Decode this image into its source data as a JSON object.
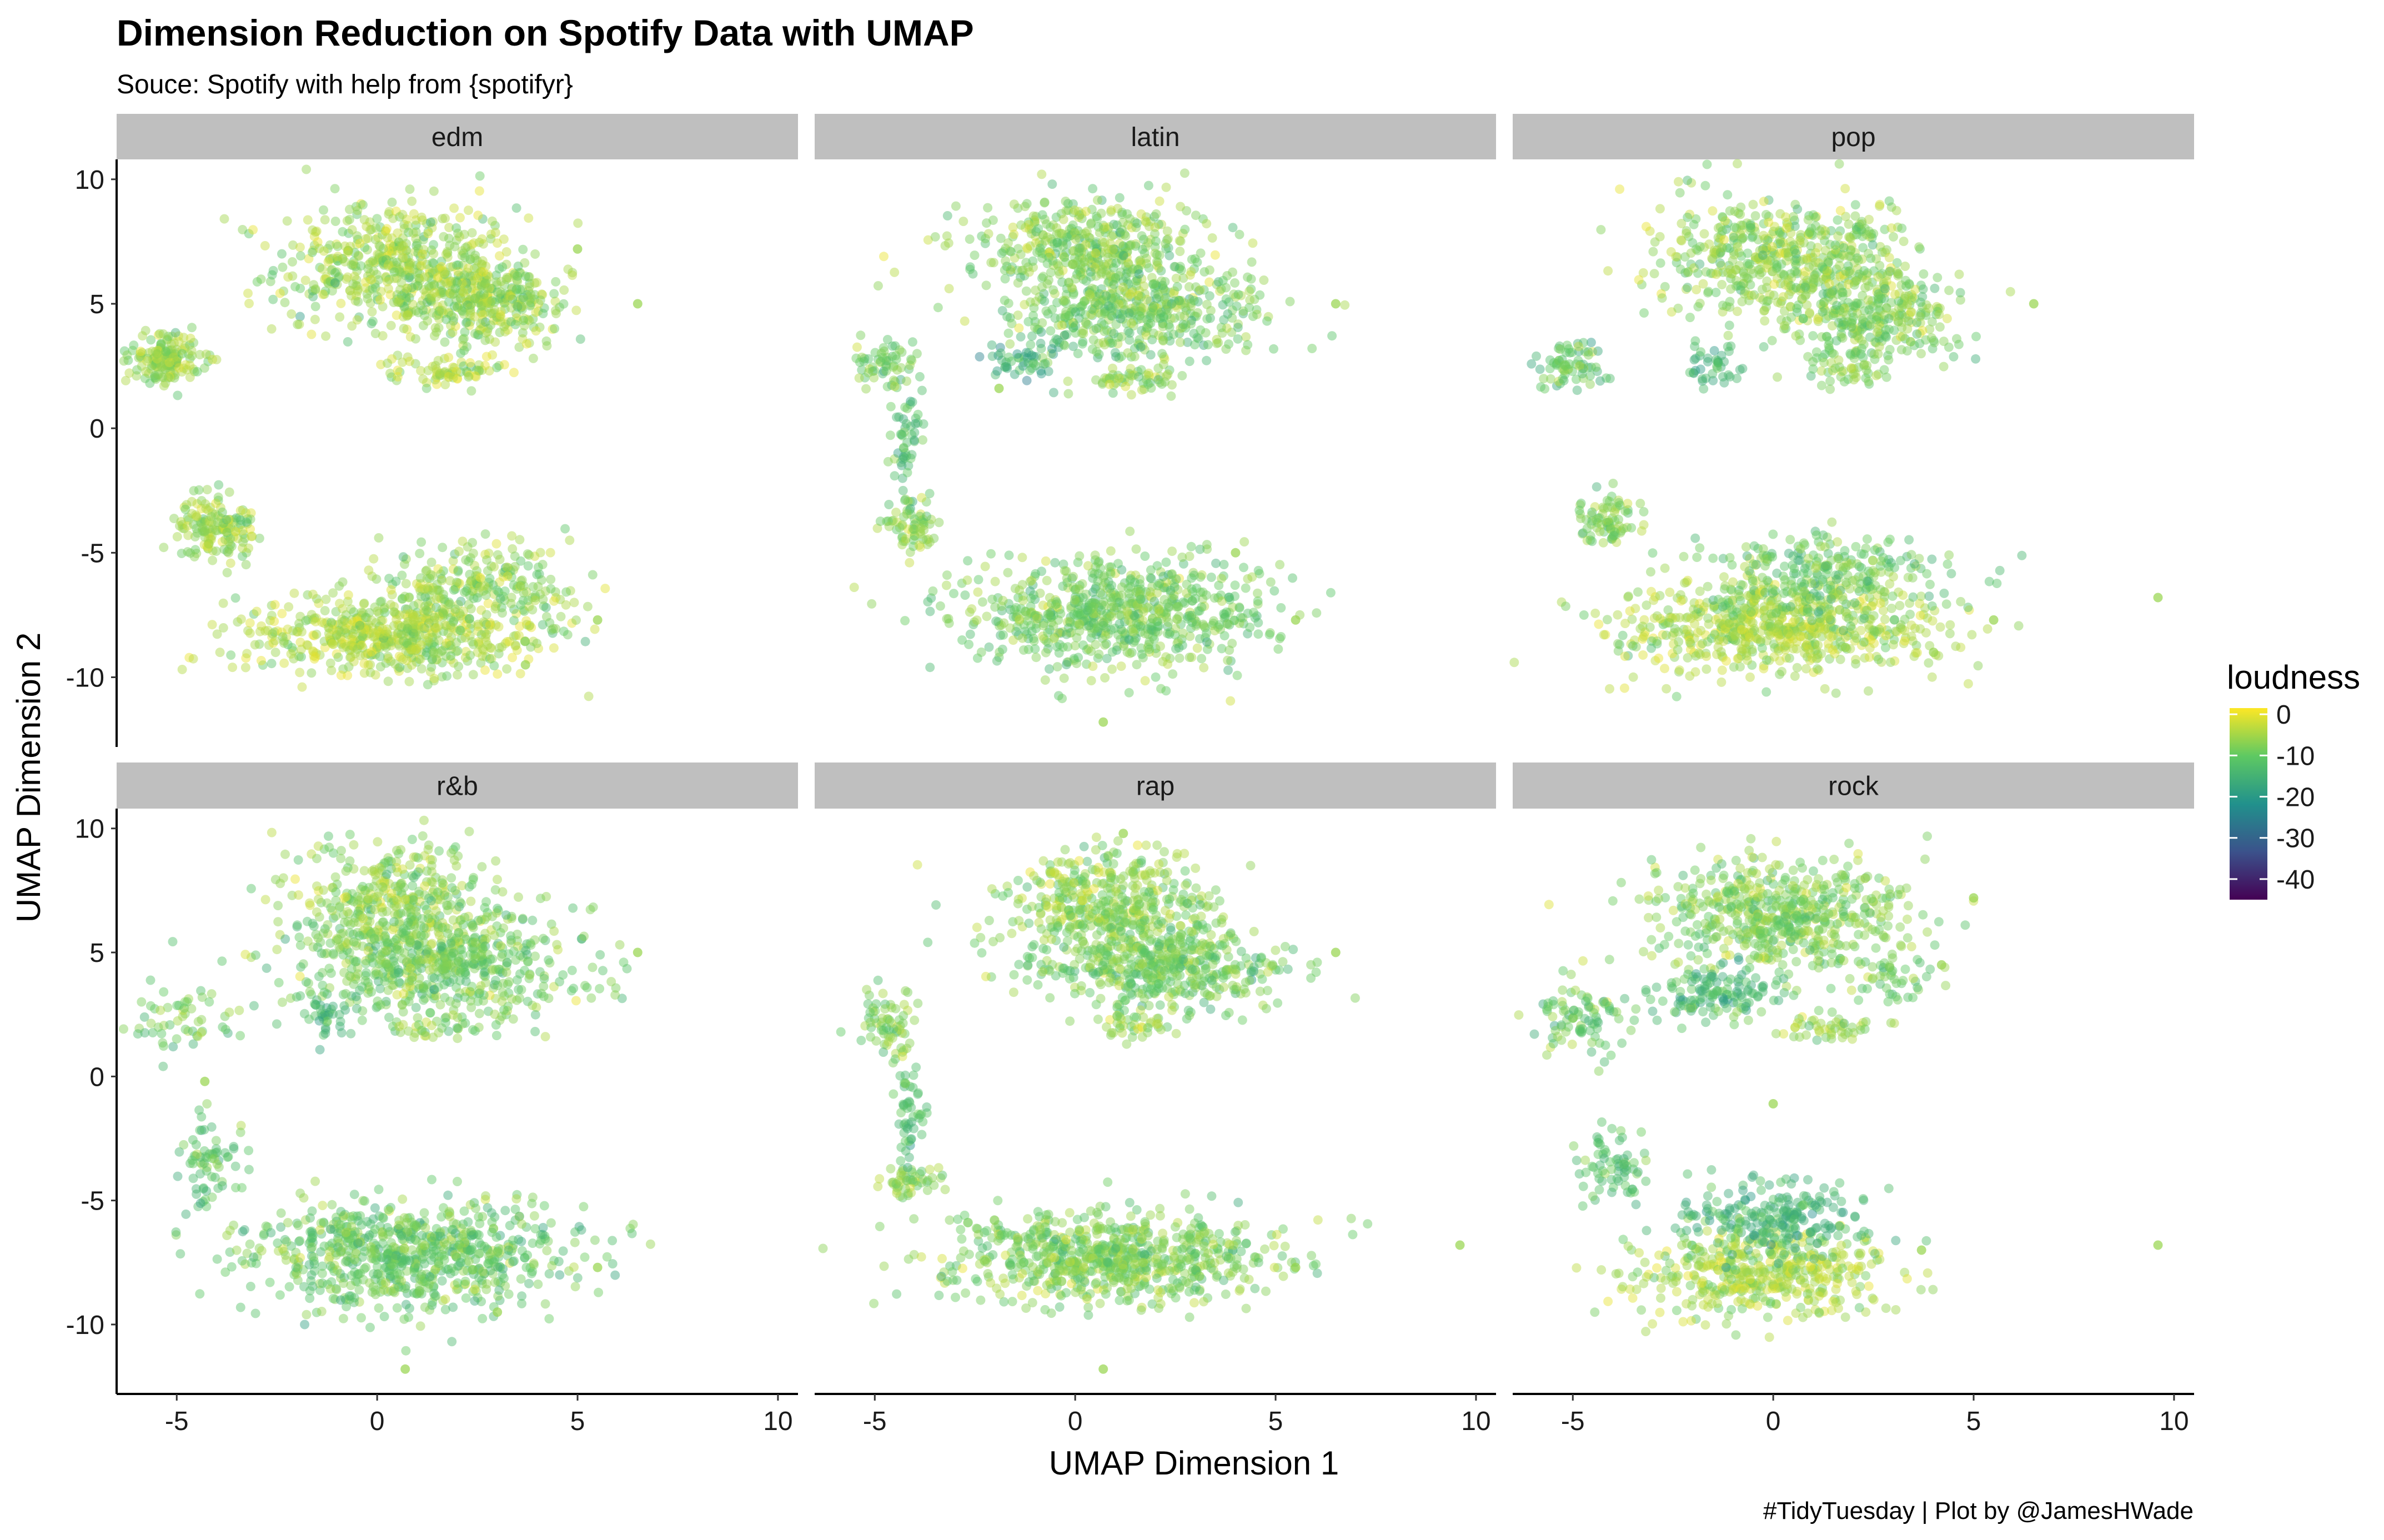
{
  "chart_data": {
    "type": "scatter",
    "title": "Dimension Reduction on Spotify Data with UMAP",
    "subtitle": "Souce: Spotify with help from {spotifyr}",
    "xlabel": "UMAP Dimension 1",
    "ylabel": "UMAP Dimension 2",
    "caption": "#TidyTuesday | Plot by @JamesHWade",
    "xlim": [
      -6.5,
      10.5
    ],
    "ylim": [
      -12.8,
      10.8
    ],
    "x_ticks": [
      -5,
      0,
      5,
      10
    ],
    "x_tick_labels": [
      "-5",
      "0",
      "5",
      "10"
    ],
    "y_ticks": [
      -10,
      -5,
      0,
      5,
      10
    ],
    "y_tick_labels": [
      "-10",
      "-5",
      "0",
      "5",
      "10"
    ],
    "grid": false,
    "color_variable": "loudness",
    "legend": {
      "title": "loudness",
      "placement": "right",
      "range": [
        -45,
        1.5
      ],
      "ticks": [
        0,
        -10,
        -20,
        -30,
        -40
      ],
      "tick_labels": [
        "0",
        "-10",
        "-20",
        "-30",
        "-40"
      ]
    },
    "colorscale": [
      "#440154",
      "#3b528b",
      "#21918c",
      "#5ec962",
      "#fde725"
    ],
    "facets": [
      {
        "label": "edm",
        "clusters": [
          {
            "cx": 0.5,
            "cy": 6.5,
            "sx": 1.5,
            "sy": 1.3,
            "n": 520,
            "loud": -6
          },
          {
            "cx": 2.8,
            "cy": 5.0,
            "sx": 1.0,
            "sy": 0.9,
            "n": 300,
            "loud": -6
          },
          {
            "cx": 1.8,
            "cy": 2.3,
            "sx": 0.7,
            "sy": 0.3,
            "n": 70,
            "loud": -4
          },
          {
            "cx": -5.3,
            "cy": 2.8,
            "sx": 0.45,
            "sy": 0.5,
            "n": 160,
            "loud": -6
          },
          {
            "cx": -4.0,
            "cy": -4.0,
            "sx": 0.5,
            "sy": 0.6,
            "n": 150,
            "loud": -6
          },
          {
            "cx": 0.5,
            "cy": -8.3,
            "sx": 2.0,
            "sy": 0.8,
            "n": 600,
            "loud": -5
          },
          {
            "cx": 2.5,
            "cy": -6.3,
            "sx": 1.2,
            "sy": 0.8,
            "n": 220,
            "loud": -7
          }
        ],
        "outliers": [
          [
            6.5,
            5.0
          ],
          [
            5.0,
            7.2
          ],
          [
            5.5,
            -7.7
          ],
          [
            3.7,
            -9.5
          ]
        ]
      },
      {
        "label": "latin",
        "clusters": [
          {
            "cx": 0.5,
            "cy": 7.2,
            "sx": 1.5,
            "sy": 1.0,
            "n": 450,
            "loud": -8
          },
          {
            "cx": 1.5,
            "cy": 4.6,
            "sx": 1.6,
            "sy": 1.0,
            "n": 420,
            "loud": -9
          },
          {
            "cx": 1.5,
            "cy": 2.0,
            "sx": 0.6,
            "sy": 0.3,
            "n": 50,
            "loud": -6
          },
          {
            "cx": -1.3,
            "cy": 2.8,
            "sx": 0.4,
            "sy": 0.5,
            "n": 50,
            "loud": -16
          },
          {
            "cx": -4.8,
            "cy": 2.5,
            "sx": 0.4,
            "sy": 0.5,
            "n": 60,
            "loud": -9
          },
          {
            "cx": -4.2,
            "cy": -0.5,
            "sx": 0.2,
            "sy": 1.2,
            "n": 50,
            "loud": -12
          },
          {
            "cx": -4.1,
            "cy": -4.0,
            "sx": 0.35,
            "sy": 0.5,
            "n": 70,
            "loud": -7
          },
          {
            "cx": 1.0,
            "cy": -7.4,
            "sx": 1.9,
            "sy": 1.1,
            "n": 700,
            "loud": -9
          }
        ],
        "outliers": [
          [
            6.5,
            5.0
          ],
          [
            5.5,
            -7.7
          ],
          [
            0.7,
            -11.8
          ],
          [
            -1.9,
            1.6
          ],
          [
            4.0,
            -5.0
          ]
        ]
      },
      {
        "label": "pop",
        "clusters": [
          {
            "cx": 0.3,
            "cy": 6.8,
            "sx": 1.6,
            "sy": 1.2,
            "n": 550,
            "loud": -7
          },
          {
            "cx": 2.5,
            "cy": 4.5,
            "sx": 1.1,
            "sy": 0.9,
            "n": 280,
            "loud": -8
          },
          {
            "cx": -1.5,
            "cy": 2.5,
            "sx": 0.4,
            "sy": 0.4,
            "n": 40,
            "loud": -14
          },
          {
            "cx": 1.8,
            "cy": 2.2,
            "sx": 0.6,
            "sy": 0.3,
            "n": 40,
            "loud": -7
          },
          {
            "cx": -5.0,
            "cy": 2.5,
            "sx": 0.45,
            "sy": 0.5,
            "n": 70,
            "loud": -10
          },
          {
            "cx": -4.1,
            "cy": -3.6,
            "sx": 0.4,
            "sy": 0.6,
            "n": 80,
            "loud": -8
          },
          {
            "cx": 0.0,
            "cy": -8.0,
            "sx": 2.0,
            "sy": 0.9,
            "n": 650,
            "loud": -5
          },
          {
            "cx": 1.5,
            "cy": -5.8,
            "sx": 1.5,
            "sy": 0.8,
            "n": 260,
            "loud": -10
          }
        ],
        "outliers": [
          [
            6.5,
            5.0
          ],
          [
            9.6,
            -6.8
          ],
          [
            5.5,
            -7.7
          ],
          [
            4.0,
            -9.0
          ],
          [
            1.8,
            -8.8
          ]
        ]
      },
      {
        "label": "r&b",
        "clusters": [
          {
            "cx": 0.5,
            "cy": 7.0,
            "sx": 1.3,
            "sy": 1.2,
            "n": 380,
            "loud": -7
          },
          {
            "cx": 1.5,
            "cy": 4.6,
            "sx": 1.8,
            "sy": 1.0,
            "n": 560,
            "loud": -9
          },
          {
            "cx": -1.3,
            "cy": 2.5,
            "sx": 0.4,
            "sy": 0.5,
            "n": 40,
            "loud": -14
          },
          {
            "cx": 1.5,
            "cy": 2.0,
            "sx": 0.6,
            "sy": 0.3,
            "n": 40,
            "loud": -7
          },
          {
            "cx": -4.8,
            "cy": 2.3,
            "sx": 0.6,
            "sy": 0.7,
            "n": 55,
            "loud": -9
          },
          {
            "cx": -4.2,
            "cy": -3.5,
            "sx": 0.35,
            "sy": 0.8,
            "n": 70,
            "loud": -12
          },
          {
            "cx": 0.8,
            "cy": -7.2,
            "sx": 2.0,
            "sy": 1.1,
            "n": 750,
            "loud": -10
          }
        ],
        "outliers": [
          [
            6.5,
            5.0
          ],
          [
            5.5,
            -7.7
          ],
          [
            0.7,
            -11.8
          ],
          [
            3.0,
            -9.5
          ],
          [
            -4.3,
            -0.2
          ]
        ]
      },
      {
        "label": "rap",
        "clusters": [
          {
            "cx": 0.8,
            "cy": 7.0,
            "sx": 1.3,
            "sy": 1.1,
            "n": 400,
            "loud": -7
          },
          {
            "cx": 2.0,
            "cy": 4.5,
            "sx": 1.6,
            "sy": 0.9,
            "n": 480,
            "loud": -9
          },
          {
            "cx": 1.3,
            "cy": 2.0,
            "sx": 0.7,
            "sy": 0.3,
            "n": 40,
            "loud": -6
          },
          {
            "cx": -4.7,
            "cy": 2.2,
            "sx": 0.4,
            "sy": 0.7,
            "n": 70,
            "loud": -8
          },
          {
            "cx": -4.1,
            "cy": -1.8,
            "sx": 0.2,
            "sy": 1.0,
            "n": 50,
            "loud": -12
          },
          {
            "cx": -4.1,
            "cy": -4.2,
            "sx": 0.4,
            "sy": 0.4,
            "n": 50,
            "loud": -7
          },
          {
            "cx": 0.8,
            "cy": -7.3,
            "sx": 2.0,
            "sy": 0.9,
            "n": 720,
            "loud": -8
          }
        ],
        "outliers": [
          [
            6.5,
            5.0
          ],
          [
            9.6,
            -6.8
          ],
          [
            5.5,
            -7.7
          ],
          [
            0.7,
            -11.8
          ],
          [
            1.2,
            9.8
          ]
        ]
      },
      {
        "label": "rock",
        "clusters": [
          {
            "cx": 0.2,
            "cy": 6.5,
            "sx": 1.6,
            "sy": 1.2,
            "n": 560,
            "loud": -8
          },
          {
            "cx": -1.5,
            "cy": 3.5,
            "sx": 0.8,
            "sy": 0.6,
            "n": 130,
            "loud": -13
          },
          {
            "cx": 1.5,
            "cy": 2.0,
            "sx": 0.7,
            "sy": 0.3,
            "n": 50,
            "loud": -6
          },
          {
            "cx": 3.0,
            "cy": 4.0,
            "sx": 0.6,
            "sy": 0.5,
            "n": 40,
            "loud": -9
          },
          {
            "cx": -4.8,
            "cy": 2.3,
            "sx": 0.6,
            "sy": 0.7,
            "n": 90,
            "loud": -10
          },
          {
            "cx": -4.0,
            "cy": -3.8,
            "sx": 0.4,
            "sy": 0.7,
            "n": 70,
            "loud": -12
          },
          {
            "cx": -0.3,
            "cy": -8.0,
            "sx": 1.6,
            "sy": 0.9,
            "n": 450,
            "loud": -5
          },
          {
            "cx": 0.0,
            "cy": -5.8,
            "sx": 1.2,
            "sy": 0.8,
            "n": 220,
            "loud": -15
          }
        ],
        "outliers": [
          [
            9.6,
            -6.8
          ],
          [
            0.0,
            -1.1
          ],
          [
            5.0,
            7.2
          ],
          [
            4.2,
            4.5
          ],
          [
            3.7,
            -7.0
          ]
        ]
      }
    ]
  }
}
